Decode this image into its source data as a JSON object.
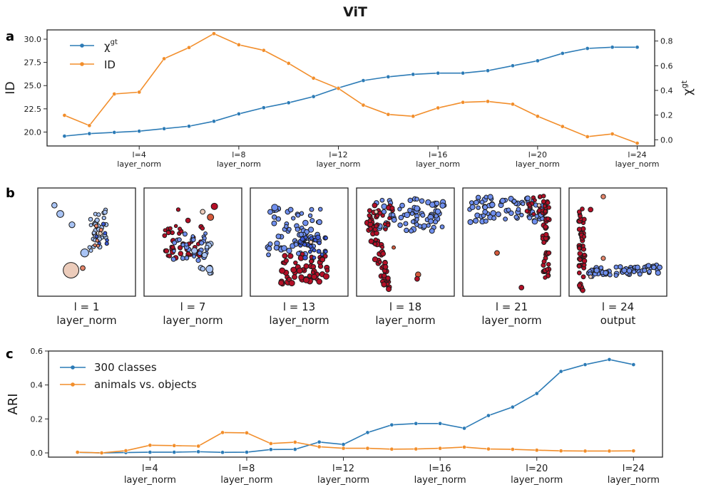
{
  "figure_title": "ViT",
  "panel_labels": {
    "a": "a",
    "b": "b",
    "c": "c"
  },
  "colors": {
    "blue": "#2c7bb6",
    "orange": "#f28e2b",
    "dark_red": "#b2182b",
    "mid_blue": "#4a6fe3"
  },
  "chart_data": [
    {
      "type": "line",
      "panel": "a",
      "x": [
        1,
        2,
        3,
        4,
        5,
        6,
        7,
        8,
        9,
        10,
        11,
        12,
        13,
        14,
        15,
        16,
        17,
        18,
        19,
        20,
        21,
        22,
        23,
        24
      ],
      "series": [
        {
          "name": "χ^gt",
          "legend_label": "χ",
          "legend_sup": "gt",
          "axis": "right",
          "color": "#2c7bb6",
          "values": [
            0.03,
            0.05,
            0.06,
            0.07,
            0.09,
            0.11,
            0.15,
            0.21,
            0.26,
            0.3,
            0.35,
            0.42,
            0.48,
            0.51,
            0.53,
            0.54,
            0.54,
            0.56,
            0.6,
            0.64,
            0.7,
            0.74,
            0.75,
            0.75
          ]
        },
        {
          "name": "ID",
          "legend_label": "ID",
          "axis": "left",
          "color": "#f28e2b",
          "values": [
            21.8,
            20.7,
            24.1,
            24.3,
            27.9,
            29.1,
            30.6,
            29.4,
            28.8,
            27.4,
            25.8,
            24.7,
            22.9,
            21.9,
            21.7,
            22.6,
            23.2,
            23.3,
            23.0,
            21.7,
            20.6,
            19.5,
            19.8,
            18.8
          ]
        }
      ],
      "ylabel_left": "ID",
      "ylabel_right": "χ",
      "ylabel_right_sup": "gt",
      "ylim_left": [
        18.5,
        31.0
      ],
      "ylim_right": [
        -0.05,
        0.89
      ],
      "yticks_left": [
        "20.0",
        "22.5",
        "25.0",
        "27.5",
        "30.0"
      ],
      "yticks_right": [
        "0.0",
        "0.2",
        "0.4",
        "0.6",
        "0.8"
      ],
      "xtick_positions": [
        4,
        8,
        12,
        16,
        20,
        24
      ],
      "xtick_labels": [
        [
          "l=4",
          "layer_norm"
        ],
        [
          "l=8",
          "layer_norm"
        ],
        [
          "l=12",
          "layer_norm"
        ],
        [
          "l=16",
          "layer_norm"
        ],
        [
          "l=20",
          "layer_norm"
        ],
        [
          "l=24",
          "layer_norm"
        ]
      ],
      "xlim": [
        0.3,
        24.7
      ],
      "legend_position": "top-left"
    },
    {
      "type": "scatter",
      "panel": "b",
      "description_free": true,
      "subplots": [
        {
          "label_line1": "l = 1",
          "label_line2": "layer_norm"
        },
        {
          "label_line1": "l = 7",
          "label_line2": "layer_norm"
        },
        {
          "label_line1": "l = 13",
          "label_line2": "layer_norm"
        },
        {
          "label_line1": "l = 18",
          "label_line2": "layer_norm"
        },
        {
          "label_line1": "l = 21",
          "label_line2": "layer_norm"
        },
        {
          "label_line1": "l = 24",
          "label_line2": "output"
        }
      ]
    },
    {
      "type": "line",
      "panel": "c",
      "x": [
        1,
        2,
        3,
        4,
        5,
        6,
        7,
        8,
        9,
        10,
        11,
        12,
        13,
        14,
        15,
        16,
        17,
        18,
        19,
        20,
        21,
        22,
        23,
        24
      ],
      "series": [
        {
          "name": "300 classes",
          "color": "#2c7bb6",
          "values": [
            0.003,
            0.0,
            0.002,
            0.004,
            0.004,
            0.007,
            0.003,
            0.004,
            0.02,
            0.021,
            0.064,
            0.05,
            0.12,
            0.165,
            0.173,
            0.173,
            0.145,
            0.22,
            0.27,
            0.35,
            0.48,
            0.52,
            0.55,
            0.52
          ]
        },
        {
          "name": "animals vs. objects",
          "color": "#f28e2b",
          "values": [
            0.004,
            0.0,
            0.013,
            0.045,
            0.043,
            0.04,
            0.12,
            0.118,
            0.055,
            0.063,
            0.036,
            0.027,
            0.027,
            0.022,
            0.023,
            0.027,
            0.034,
            0.023,
            0.021,
            0.016,
            0.012,
            0.011,
            0.011,
            0.012
          ]
        }
      ],
      "ylabel": "ARI",
      "ylim": [
        -0.025,
        0.6
      ],
      "yticks": [
        "0.0",
        "0.2",
        "0.4",
        "0.6"
      ],
      "xtick_positions": [
        4,
        8,
        12,
        16,
        20,
        24
      ],
      "xtick_labels": [
        [
          "l=4",
          "layer_norm"
        ],
        [
          "l=8",
          "layer_norm"
        ],
        [
          "l=12",
          "layer_norm"
        ],
        [
          "l=16",
          "layer_norm"
        ],
        [
          "l=20",
          "layer_norm"
        ],
        [
          "l=24",
          "layer_norm"
        ]
      ],
      "xlim": [
        -0.2,
        25.2
      ],
      "legend_position": "top-left"
    }
  ]
}
